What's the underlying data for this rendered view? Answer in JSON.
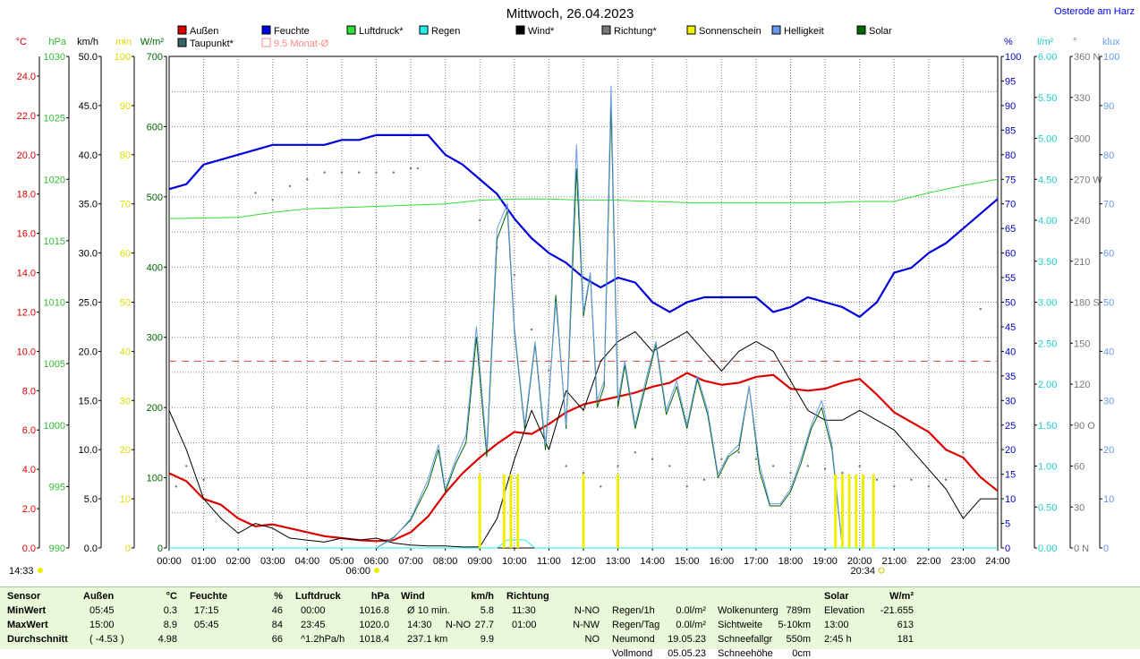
{
  "title": "Mittwoch, 26.04.2023",
  "location": "Osterode am Harz",
  "legend": [
    {
      "label": "Außen",
      "color": "#dd0000"
    },
    {
      "label": "Feuchte",
      "color": "#0000dd"
    },
    {
      "label": "Luftdruck*",
      "color": "#33dd33"
    },
    {
      "label": "Regen",
      "color": "#22eeee"
    },
    {
      "label": "Wind*",
      "color": "#000000"
    },
    {
      "label": "Richtung*",
      "color": "#777777"
    },
    {
      "label": "Sonnenschein",
      "color": "#eeee00"
    },
    {
      "label": "Helligkeit",
      "color": "#6699ee"
    },
    {
      "label": "Solar",
      "color": "#006600"
    },
    {
      "label": "Taupunkt*",
      "color": "#336666"
    },
    {
      "label": "9.5 Monat-Ø",
      "color": "#ff8888"
    }
  ],
  "axes_left": [
    {
      "unit": "°C",
      "color": "#dd0000",
      "ticks": [
        "24.0",
        "22.0",
        "20.0",
        "18.0",
        "16.0",
        "14.0",
        "12.0",
        "10.0",
        "8.0",
        "6.0",
        "4.0",
        "2.0",
        "0.0"
      ]
    },
    {
      "unit": "hPa",
      "color": "#33bb33",
      "ticks": [
        "1030",
        "1025",
        "1020",
        "1015",
        "1010",
        "1005",
        "1000",
        "995",
        "990"
      ]
    },
    {
      "unit": "km/h",
      "color": "#000000",
      "ticks": [
        "50.0",
        "45.0",
        "40.0",
        "35.0",
        "30.0",
        "25.0",
        "20.0",
        "15.0",
        "10.0",
        "5.0",
        "0.0"
      ]
    },
    {
      "unit": "min",
      "color": "#dddd00",
      "ticks": [
        "100",
        "90",
        "80",
        "70",
        "60",
        "50",
        "40",
        "30",
        "20",
        "10",
        "0"
      ]
    },
    {
      "unit": "W/m²",
      "color": "#006600",
      "ticks": [
        "700",
        "600",
        "500",
        "400",
        "300",
        "200",
        "100",
        "0"
      ]
    }
  ],
  "axes_right": [
    {
      "unit": "%",
      "color": "#0000cc",
      "ticks": [
        "100",
        "95",
        "90",
        "85",
        "80",
        "75",
        "70",
        "65",
        "60",
        "55",
        "50",
        "45",
        "40",
        "35",
        "30",
        "25",
        "20",
        "15",
        "10",
        "5",
        "0"
      ]
    },
    {
      "unit": "l/m²",
      "color": "#22cccc",
      "ticks": [
        "6.00",
        "5.50",
        "5.00",
        "4.50",
        "4.00",
        "3.50",
        "3.00",
        "2.50",
        "2.00",
        "1.50",
        "1.00",
        "0.50",
        "0.00"
      ]
    },
    {
      "unit": "°",
      "color": "#777777",
      "ticks": [
        "360 N",
        "330",
        "300",
        "270 W",
        "240",
        "210",
        "180 S",
        "150",
        "120",
        "90 O",
        "60",
        "30",
        "0 N"
      ]
    },
    {
      "unit": "klux",
      "color": "#6699ee",
      "ticks": [
        "100",
        "90",
        "80",
        "70",
        "60",
        "50",
        "40",
        "30",
        "20",
        "10",
        "0"
      ]
    }
  ],
  "x_ticks": [
    "00:00",
    "01:00",
    "02:00",
    "03:00",
    "04:00",
    "05:00",
    "06:00",
    "07:00",
    "08:00",
    "09:00",
    "10:00",
    "11:00",
    "12:00",
    "13:00",
    "14:00",
    "15:00",
    "16:00",
    "17:00",
    "18:00",
    "19:00",
    "20:00",
    "21:00",
    "22:00",
    "23:00",
    "24:00"
  ],
  "markers": {
    "now": "14:33",
    "sunrise": "06:00",
    "sunset": "20:34"
  },
  "chart_data": {
    "type": "line",
    "title": "Mittwoch, 26.04.2023",
    "x_unit": "hour",
    "xlim": [
      0,
      24
    ],
    "series": [
      {
        "name": "Außen",
        "axis": "°C",
        "ylim": [
          0,
          24.0
        ],
        "color": "#dd0000",
        "x": [
          0,
          0.5,
          1,
          1.5,
          2,
          2.5,
          3,
          3.5,
          4,
          4.5,
          5,
          5.5,
          6,
          6.5,
          7,
          7.5,
          8,
          8.5,
          9,
          9.5,
          10,
          10.5,
          11,
          11.5,
          12,
          12.5,
          13,
          13.5,
          14,
          14.5,
          15,
          15.5,
          16,
          16.5,
          17,
          17.5,
          18,
          18.5,
          19,
          19.5,
          20,
          20.5,
          21,
          21.5,
          22,
          22.5,
          23,
          23.5,
          24
        ],
        "y": [
          3.8,
          3.4,
          2.5,
          2.2,
          1.5,
          1.1,
          1.2,
          1.0,
          0.8,
          0.6,
          0.5,
          0.4,
          0.35,
          0.4,
          0.8,
          1.6,
          2.8,
          3.8,
          4.6,
          5.3,
          5.9,
          5.8,
          6.3,
          6.9,
          7.3,
          7.5,
          7.7,
          7.9,
          8.2,
          8.4,
          8.9,
          8.5,
          8.3,
          8.4,
          8.7,
          8.8,
          8.1,
          8.0,
          8.1,
          8.4,
          8.6,
          7.8,
          6.9,
          6.4,
          5.9,
          5.0,
          4.6,
          3.6,
          2.9
        ]
      },
      {
        "name": "Feuchte",
        "axis": "%",
        "ylim": [
          0,
          100
        ],
        "color": "#0000dd",
        "x": [
          0,
          0.5,
          1,
          1.5,
          2,
          2.5,
          3,
          3.5,
          4,
          4.5,
          5,
          5.5,
          6,
          6.5,
          7,
          7.5,
          8,
          8.5,
          9,
          9.5,
          10,
          10.5,
          11,
          11.5,
          12,
          12.5,
          13,
          13.5,
          14,
          14.5,
          15,
          15.5,
          16,
          16.5,
          17,
          17.5,
          18,
          18.5,
          19,
          19.5,
          20,
          20.5,
          21,
          21.5,
          22,
          22.5,
          23,
          23.5,
          24
        ],
        "y": [
          73,
          74,
          78,
          79,
          80,
          81,
          82,
          82,
          82,
          82,
          83,
          83,
          84,
          84,
          84,
          84,
          80,
          78,
          75,
          72,
          67,
          63,
          60,
          58,
          55,
          53,
          55,
          54,
          50,
          48,
          50,
          51,
          51,
          51,
          51,
          48,
          49,
          51,
          50,
          49,
          47,
          50,
          56,
          57,
          60,
          62,
          65,
          68,
          71
        ]
      },
      {
        "name": "Luftdruck*",
        "axis": "hPa",
        "ylim": [
          990,
          1030
        ],
        "color": "#33dd33",
        "x": [
          0,
          2,
          3,
          4,
          5,
          6,
          7,
          8,
          9,
          10,
          11,
          12,
          13,
          14,
          15,
          16,
          17,
          18,
          19,
          20,
          21,
          22,
          23,
          24
        ],
        "y": [
          1016.8,
          1016.9,
          1017.3,
          1017.6,
          1017.7,
          1017.8,
          1017.9,
          1018.0,
          1018.3,
          1018.4,
          1018.4,
          1018.3,
          1018.3,
          1018.2,
          1018.1,
          1018.1,
          1018.1,
          1018.1,
          1018.1,
          1018.2,
          1018.2,
          1018.9,
          1019.5,
          1020.0
        ]
      },
      {
        "name": "Wind*",
        "axis": "km/h",
        "ylim": [
          0,
          50
        ],
        "color": "#000000",
        "x": [
          0,
          0.5,
          1,
          1.5,
          2,
          2.5,
          3,
          3.5,
          4,
          4.5,
          5,
          5.5,
          6,
          6.5,
          7,
          7.5,
          8,
          8.5,
          9,
          9.5,
          10,
          10.5,
          11,
          11.5,
          12,
          12.5,
          13,
          13.5,
          14,
          14.5,
          15,
          15.5,
          16,
          16.5,
          17,
          17.5,
          18,
          18.5,
          19,
          19.5,
          20,
          20.5,
          21,
          21.5,
          22,
          22.5,
          23,
          23.5,
          24
        ],
        "y": [
          14,
          10,
          5,
          3,
          1.5,
          2.5,
          2,
          1,
          0.8,
          0.6,
          1,
          0.8,
          1,
          0.5,
          0.3,
          0.2,
          0.2,
          0.1,
          0.1,
          3,
          9,
          14,
          10,
          16,
          14,
          19,
          21,
          22,
          20,
          21,
          22,
          20,
          18,
          20,
          21,
          20,
          17,
          14,
          13,
          13,
          14,
          13,
          12,
          10,
          8,
          6,
          3,
          5,
          5
        ]
      },
      {
        "name": "Solar",
        "axis": "W/m²",
        "ylim": [
          0,
          700
        ],
        "color": "#006600",
        "x": [
          0,
          6,
          6.5,
          7,
          7.5,
          7.8,
          8,
          8.3,
          8.6,
          8.9,
          9.2,
          9.5,
          9.8,
          10,
          10.3,
          10.6,
          10.9,
          11.2,
          11.5,
          11.8,
          12.0,
          12.2,
          12.4,
          12.6,
          12.8,
          13.0,
          13.2,
          13.5,
          13.8,
          14.1,
          14.4,
          14.7,
          15.0,
          15.3,
          15.6,
          15.9,
          16.2,
          16.5,
          16.8,
          17.1,
          17.4,
          17.7,
          18.0,
          18.3,
          18.6,
          18.9,
          19.2,
          19.5,
          19.8,
          20.1,
          20.4,
          20.7,
          21,
          24
        ],
        "y": [
          0,
          0,
          15,
          40,
          90,
          140,
          80,
          120,
          150,
          300,
          130,
          440,
          480,
          310,
          170,
          290,
          140,
          360,
          170,
          540,
          330,
          390,
          200,
          230,
          630,
          200,
          260,
          170,
          230,
          290,
          190,
          230,
          170,
          240,
          190,
          100,
          130,
          140,
          230,
          110,
          60,
          60,
          80,
          120,
          170,
          200,
          140,
          0,
          0,
          0,
          0,
          0,
          0,
          0
        ]
      },
      {
        "name": "Helligkeit",
        "axis": "klux",
        "ylim": [
          0,
          100
        ],
        "color": "#6699ee",
        "x": [
          0,
          6,
          6.5,
          7,
          7.5,
          7.8,
          8,
          8.3,
          8.6,
          8.9,
          9.2,
          9.5,
          9.8,
          10,
          10.3,
          10.6,
          10.9,
          11.2,
          11.5,
          11.8,
          12.0,
          12.2,
          12.4,
          12.6,
          12.8,
          13.0,
          13.2,
          13.5,
          13.8,
          14.1,
          14.4,
          14.7,
          15.0,
          15.3,
          15.6,
          15.9,
          16.2,
          16.5,
          16.8,
          17.1,
          17.4,
          17.7,
          18.0,
          18.3,
          18.6,
          18.9,
          19.2,
          19.5,
          19.8,
          20.1,
          20.4,
          20.7,
          21,
          24
        ],
        "y": [
          0,
          0,
          2,
          6,
          14,
          21,
          12,
          18,
          23,
          45,
          20,
          65,
          70,
          45,
          25,
          42,
          21,
          50,
          25,
          82,
          48,
          56,
          30,
          34,
          94,
          30,
          38,
          25,
          34,
          42,
          28,
          34,
          25,
          35,
          28,
          15,
          19,
          21,
          33,
          17,
          9,
          9,
          12,
          18,
          25,
          30,
          21,
          0,
          0,
          0,
          0,
          0,
          0,
          0
        ]
      },
      {
        "name": "Regen",
        "axis": "l/m²",
        "ylim": [
          0,
          6.0
        ],
        "color": "#22eeee",
        "x": [
          0,
          9.5,
          9.8,
          10.3,
          10.6,
          24
        ],
        "y": [
          0,
          0,
          0.1,
          0.1,
          0,
          0
        ]
      },
      {
        "name": "Richtung*",
        "axis": "°",
        "ylim": [
          0,
          360
        ],
        "color": "#777777",
        "style": "dots",
        "x": [
          0.2,
          0.5,
          1,
          2.5,
          3,
          3.5,
          4,
          4.5,
          5,
          5.5,
          6,
          6.5,
          7,
          7.2,
          9,
          9.5,
          10,
          10.5,
          11,
          11.5,
          12,
          12.5,
          13,
          13.5,
          14,
          14.5,
          15,
          15.5,
          16,
          16.5,
          17,
          17.5,
          18,
          18.5,
          19,
          19.5,
          20,
          20.5,
          21,
          21.5,
          22,
          22.5,
          23,
          23.5
        ],
        "y": [
          45,
          60,
          50,
          260,
          255,
          265,
          270,
          275,
          275,
          275,
          275,
          275,
          278,
          278,
          240,
          220,
          200,
          160,
          130,
          60,
          55,
          45,
          60,
          70,
          65,
          60,
          45,
          50,
          65,
          70,
          65,
          60,
          55,
          60,
          58,
          55,
          60,
          50,
          45,
          50,
          45,
          50,
          70,
          175
        ]
      },
      {
        "name": "Sonnenschein",
        "axis": "min",
        "ylim": [
          0,
          100
        ],
        "color": "#eeee00",
        "style": "bars",
        "x": [
          9.0,
          9.7,
          9.9,
          10.1,
          12.0,
          13.0,
          19.3,
          19.5,
          19.7,
          19.9,
          20.1,
          20.4
        ],
        "y": [
          15,
          15,
          15,
          15,
          15,
          15,
          15,
          15,
          15,
          15,
          15,
          15
        ]
      }
    ],
    "reference_line": {
      "name": "9.5 Monat-Ø",
      "axis": "°C",
      "value": 9.5,
      "color": "#dd4444"
    }
  },
  "footer": {
    "headers": {
      "sensor": "Sensor",
      "aussen": "Außen",
      "aussen_unit": "°C",
      "feuchte": "Feuchte",
      "feuchte_unit": "%",
      "luftdruck": "Luftdruck",
      "luftdruck_unit": "hPa",
      "wind": "Wind",
      "wind_unit": "km/h",
      "richtung": "Richtung",
      "solar": "Solar",
      "solar_unit": "W/m²"
    },
    "rows": [
      {
        "label": "MinWert",
        "a_time": "05:45",
        "a_val": "0.3",
        "f_time": "17:15",
        "f_val": "46",
        "l_time": "00:00",
        "l_val": "1016.8",
        "w_time": "Ø 10 min.",
        "w_dir": "",
        "w_val": "5.8",
        "r_time": "11:30",
        "r_val": "N-NO",
        "c1_label": "Regen/1h",
        "c1_val": "0.0l/m²",
        "c2_label": "Wolkenunterg",
        "c2_val": "789m",
        "s_label": "Elevation",
        "s_val": "-21.655"
      },
      {
        "label": "MaxWert",
        "a_time": "15:00",
        "a_val": "8.9",
        "f_time": "05:45",
        "f_val": "84",
        "l_time": "23:45",
        "l_val": "1020.0",
        "w_time": "14:30",
        "w_dir": "N-NO",
        "w_val": "27.7",
        "r_time": "01:00",
        "r_val": "N-NW",
        "c1_label": "Regen/Tag",
        "c1_val": "0.0l/m²",
        "c2_label": "Sichtweite",
        "c2_val": "5-10km",
        "s_label": "13:00",
        "s_val": "613"
      },
      {
        "label": "Durchschnitt",
        "a_time": "( -4.53 )",
        "a_val": "4.98",
        "f_time": "",
        "f_val": "66",
        "l_time": "^1.2hPa/h",
        "l_val": "1018.4",
        "w_time": "237.1 km",
        "w_dir": "",
        "w_val": "9.9",
        "r_time": "",
        "r_val": "NO",
        "c1_label": "Neumond",
        "c1_val": "19.05.23",
        "c2_label": "Schneefallgr",
        "c2_val": "550m",
        "s_label": "2:45 h",
        "s_val": "181"
      },
      {
        "label": "",
        "a_time": "",
        "a_val": "",
        "f_time": "",
        "f_val": "",
        "l_time": "",
        "l_val": "",
        "w_time": "",
        "w_dir": "",
        "w_val": "",
        "r_time": "",
        "r_val": "",
        "c1_label": "Vollmond",
        "c1_val": "05.05.23",
        "c2_label": "Schneehöhe",
        "c2_val": "0cm",
        "s_label": "",
        "s_val": ""
      }
    ]
  }
}
